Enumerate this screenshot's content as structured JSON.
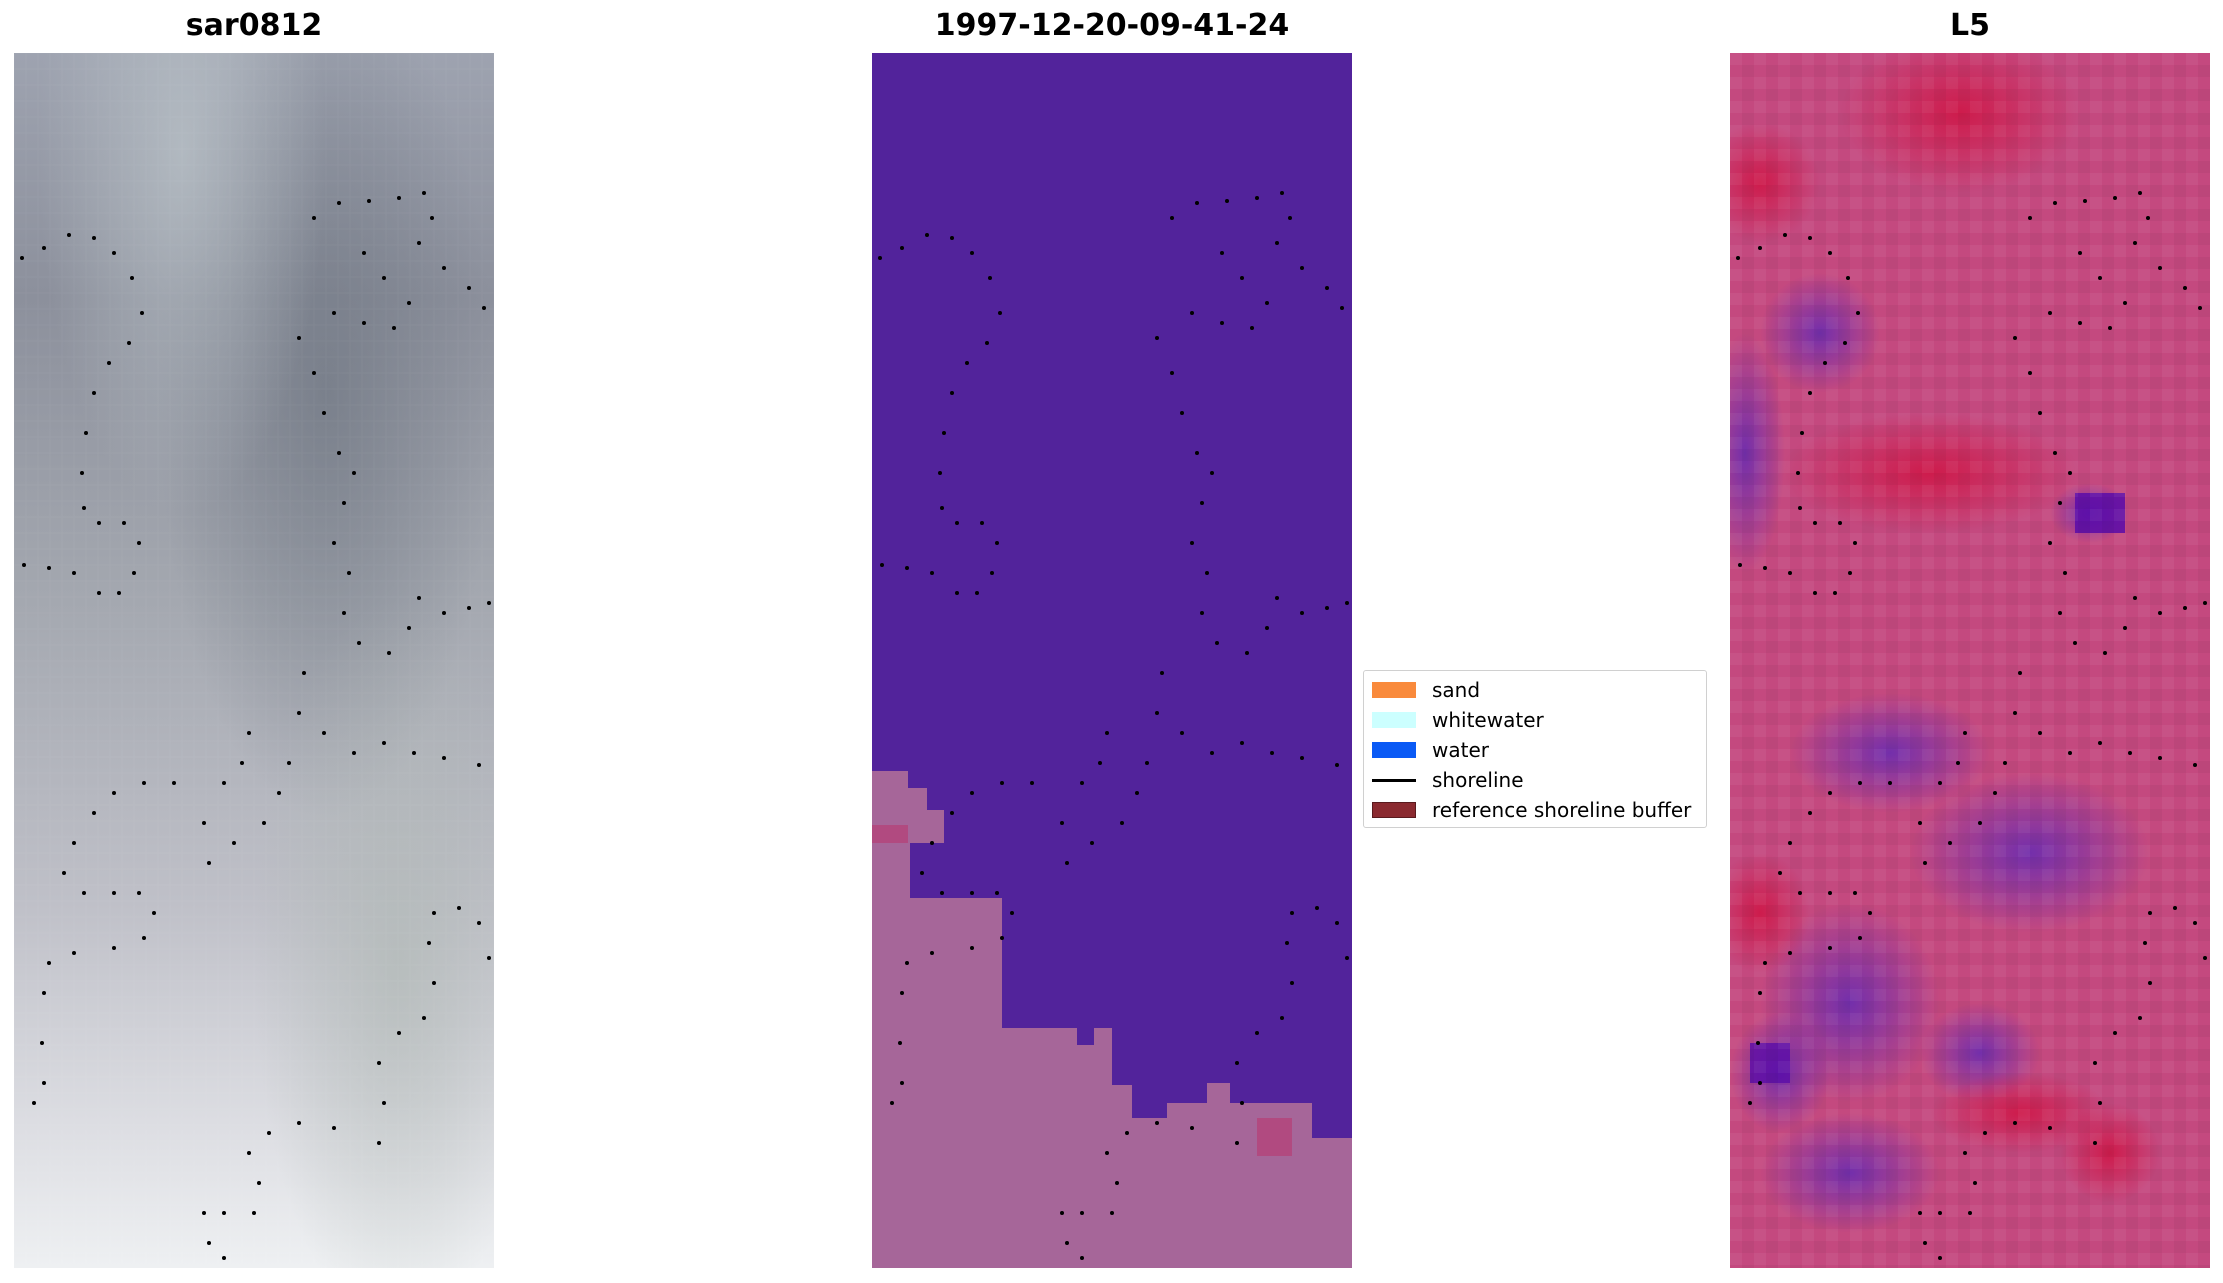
{
  "panels": [
    {
      "title": "sar0812",
      "image": "grayscale satellite image"
    },
    {
      "title": "1997-12-20-09-41-24",
      "image": "classified image"
    },
    {
      "title": "L5",
      "image": "false-color image"
    }
  ],
  "legend": {
    "items": [
      {
        "label": "sand",
        "color": "#f98a3c",
        "kind": "patch"
      },
      {
        "label": "whitewater",
        "color": "#ccffff",
        "kind": "patch"
      },
      {
        "label": "water",
        "color": "#0a5af5",
        "kind": "patch"
      },
      {
        "label": "shoreline",
        "color": "#000000",
        "kind": "line"
      },
      {
        "label": "reference shoreline buffer",
        "color": "#8b2a30",
        "kind": "patch"
      }
    ]
  },
  "colors": {
    "class_water_dark": "#52239b",
    "class_land": "#a66699",
    "class_land_dark": "#b14a80",
    "l5_pink": "#c94a80",
    "l5_purple": "#7b3ab0",
    "sar_dark": "#8a8e99",
    "sar_light": "#e9ebee"
  }
}
